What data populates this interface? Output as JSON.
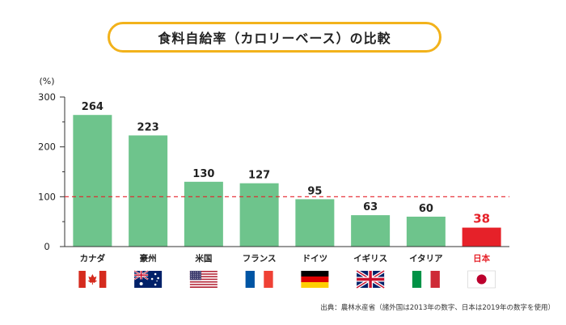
{
  "title": "食料自給率（カロリーベース）の比較",
  "source_note": "出典：農林水産省（諸外国は2013年の数字、日本は2019年の数字を使用）",
  "colors": {
    "bar": "#6ec48c",
    "highlight_bar": "#e62129",
    "highlight_text": "#e62129",
    "reference_line": "#e62129",
    "title_border": "#f2b21b",
    "axis": "#333333"
  },
  "chart_data": {
    "type": "bar",
    "ylabel": "(%)",
    "ylim": [
      0,
      300
    ],
    "yticks": [
      0,
      100,
      200,
      300
    ],
    "reference_line": 100,
    "grid": false,
    "categories": [
      "カナダ",
      "豪州",
      "米国",
      "フランス",
      "ドイツ",
      "イギリス",
      "イタリア",
      "日本"
    ],
    "values": [
      264,
      223,
      130,
      127,
      95,
      63,
      60,
      38
    ],
    "highlight_index": 7,
    "flags": [
      "canada-flag",
      "australia-flag",
      "usa-flag",
      "france-flag",
      "germany-flag",
      "uk-flag",
      "italy-flag",
      "japan-flag"
    ]
  }
}
